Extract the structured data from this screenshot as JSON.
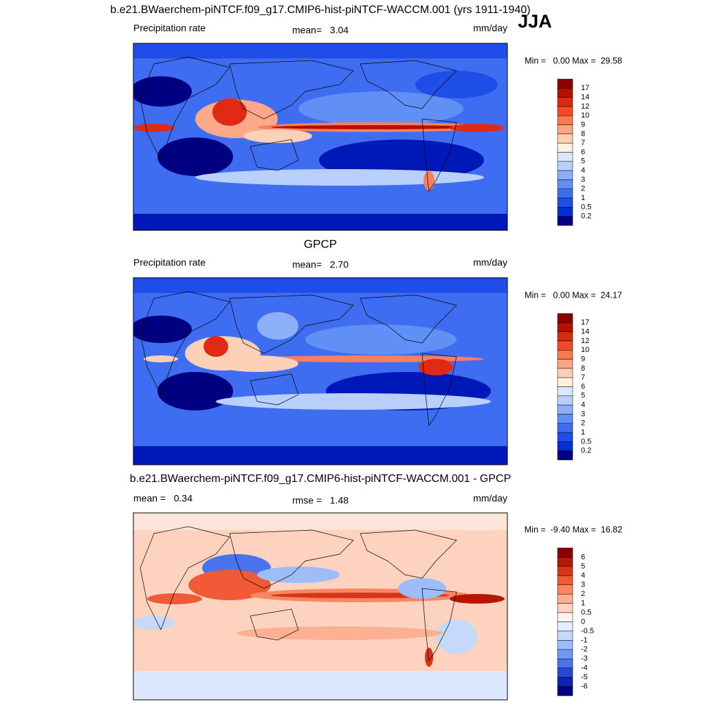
{
  "figure": {
    "season": "JJA"
  },
  "panels": [
    {
      "title": "b.e21.BWaerchem-piNTCF.f09_g17.CMIP6-hist-piNTCF-WACCM.001 (yrs 1911-1940)",
      "left": "Precipitation rate",
      "center": "mean=   3.04",
      "right": "mm/day",
      "minmax": "Min =   0.00 Max =  29.58",
      "colorbar": [
        17,
        14,
        12,
        10,
        9,
        8,
        7,
        6,
        5,
        4,
        3,
        2,
        1,
        0.5,
        0.2
      ]
    },
    {
      "title": "GPCP",
      "left": "Precipitation rate",
      "center": "mean=   2.70",
      "right": "mm/day",
      "minmax": "Min =   0.00 Max =  24.17",
      "colorbar": [
        17,
        14,
        12,
        10,
        9,
        8,
        7,
        6,
        5,
        4,
        3,
        2,
        1,
        0.5,
        0.2
      ]
    },
    {
      "title": "b.e21.BWaerchem-piNTCF.f09_g17.CMIP6-hist-piNTCF-WACCM.001 - GPCP",
      "left": "mean =   0.34",
      "center": "rmse =   1.48",
      "right": "mm/day",
      "minmax": "Min =  -9.40 Max =  16.82",
      "colorbar": [
        6,
        5,
        4,
        3,
        2,
        1,
        0.5,
        0,
        -0.5,
        -1,
        -2,
        -3,
        -4,
        -5,
        -6
      ]
    }
  ]
}
